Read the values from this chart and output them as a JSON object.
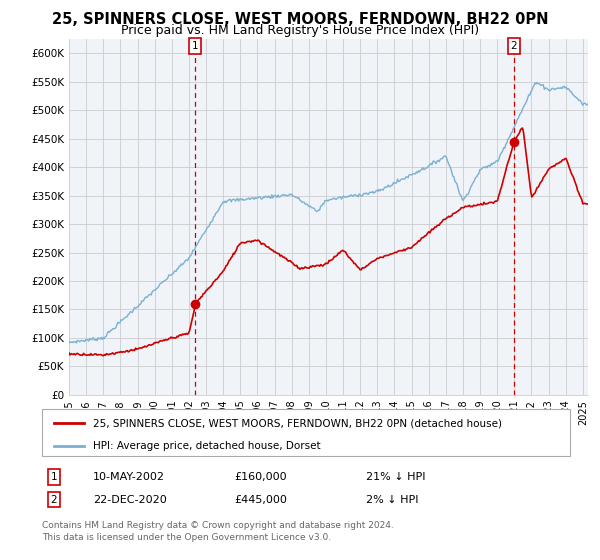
{
  "title": "25, SPINNERS CLOSE, WEST MOORS, FERNDOWN, BH22 0PN",
  "subtitle": "Price paid vs. HM Land Registry's House Price Index (HPI)",
  "title_fontsize": 10.5,
  "subtitle_fontsize": 9,
  "red_label": "25, SPINNERS CLOSE, WEST MOORS, FERNDOWN, BH22 0PN (detached house)",
  "blue_label": "HPI: Average price, detached house, Dorset",
  "ann1_num": "1",
  "ann1_date": "10-MAY-2002",
  "ann1_price": "£160,000",
  "ann1_pct": "21% ↓ HPI",
  "ann1_x": 2002.36,
  "ann1_y": 160000,
  "ann2_num": "2",
  "ann2_date": "22-DEC-2020",
  "ann2_price": "£445,000",
  "ann2_pct": "2% ↓ HPI",
  "ann2_x": 2020.97,
  "ann2_y": 445000,
  "footnote1": "Contains HM Land Registry data © Crown copyright and database right 2024.",
  "footnote2": "This data is licensed under the Open Government Licence v3.0.",
  "ylim": [
    0,
    625000
  ],
  "yticks": [
    0,
    50000,
    100000,
    150000,
    200000,
    250000,
    300000,
    350000,
    400000,
    450000,
    500000,
    550000,
    600000
  ],
  "xlim_start": 1995,
  "xlim_end": 2025.3,
  "bg_color": "#f0f4f8",
  "grid_color": "#cccccc",
  "red_color": "#cc0000",
  "blue_color": "#7ab0d4"
}
